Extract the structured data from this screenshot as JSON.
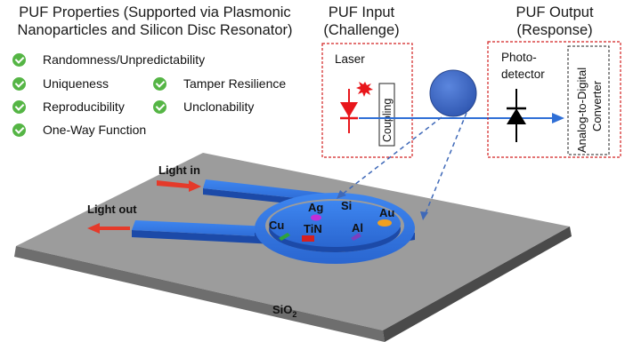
{
  "titles": {
    "properties_line1": "PUF Properties (Supported via Plasmonic",
    "properties_line2": "Nanoparticles and Silicon Disc Resonator)",
    "input_line1": "PUF Input",
    "input_line2": "(Challenge)",
    "output_line1": "PUF Output",
    "output_line2": "(Response)"
  },
  "properties": {
    "randomness": "Randomness/Unpredictability",
    "uniqueness": "Uniqueness",
    "tamper": "Tamper Resilience",
    "reproducibility": "Reproducibility",
    "unclonability": "Unclonability",
    "oneway": "One-Way Function"
  },
  "input_box": {
    "laser": "Laser",
    "coupling": "Coupling"
  },
  "output_box": {
    "photodetector_line1": "Photo-",
    "photodetector_line2": "detector",
    "adc_line1": "Analog-to-Digital",
    "adc_line2": "Converter"
  },
  "device": {
    "light_in": "Light in",
    "light_out": "Light out",
    "si": "Si",
    "substrate": "SiO",
    "substrate_sub": "2"
  },
  "particles": {
    "ag": "Ag",
    "cu": "Cu",
    "tin": "TiN",
    "al": "Al",
    "au": "Au"
  },
  "colors": {
    "checkmark": "#55b545",
    "waveguide": "#2f6fd6",
    "dashed_box": "#d22020",
    "laser": "#e8161b",
    "resonator_disc": "#3e6ac8",
    "substrate": "#9a9a9a"
  }
}
